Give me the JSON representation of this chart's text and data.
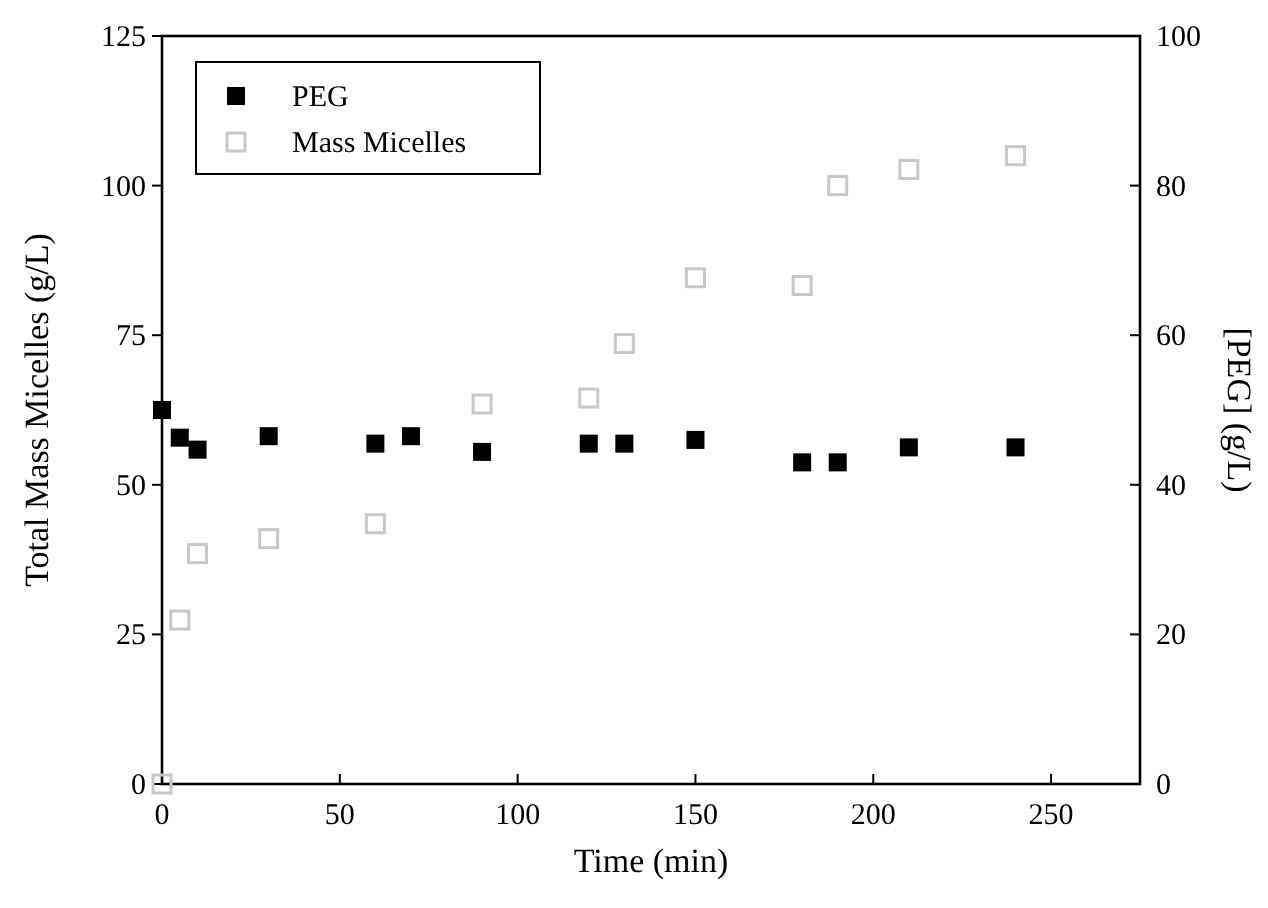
{
  "chart_data": {
    "type": "scatter",
    "xlabel": "Time (min)",
    "ylabel": "Total Mass Micelles (g/L)",
    "y2label": "[PEG] (g/L)",
    "xlim": [
      0,
      275
    ],
    "xticks": [
      0,
      50,
      100,
      150,
      200,
      250
    ],
    "ylim": [
      0,
      125
    ],
    "yticks": [
      0,
      25,
      50,
      75,
      100,
      125
    ],
    "y2lim": [
      0,
      100
    ],
    "y2ticks": [
      0,
      20,
      40,
      60,
      80,
      100
    ],
    "marker": "square",
    "legend": "top left",
    "grid": false,
    "series": [
      {
        "name": "PEG",
        "color": "#000000",
        "axis": "y2",
        "x": [
          0,
          5,
          10,
          30,
          60,
          70,
          90,
          120,
          130,
          150,
          180,
          190,
          210,
          240
        ],
        "values": [
          50,
          46.3,
          44.7,
          46.5,
          45.5,
          46.5,
          44.4,
          45.5,
          45.5,
          46,
          43,
          43,
          45,
          45
        ]
      },
      {
        "name": "Mass Micelles",
        "color": "#c8c8c8",
        "x": [
          0,
          5,
          10,
          30,
          60,
          90,
          120,
          130,
          150,
          180,
          190,
          210,
          240
        ],
        "values": [
          0,
          27.4,
          38.5,
          41,
          43.5,
          63.5,
          64.5,
          73.6,
          84.6,
          83.3,
          100,
          102.7,
          105
        ]
      }
    ]
  }
}
